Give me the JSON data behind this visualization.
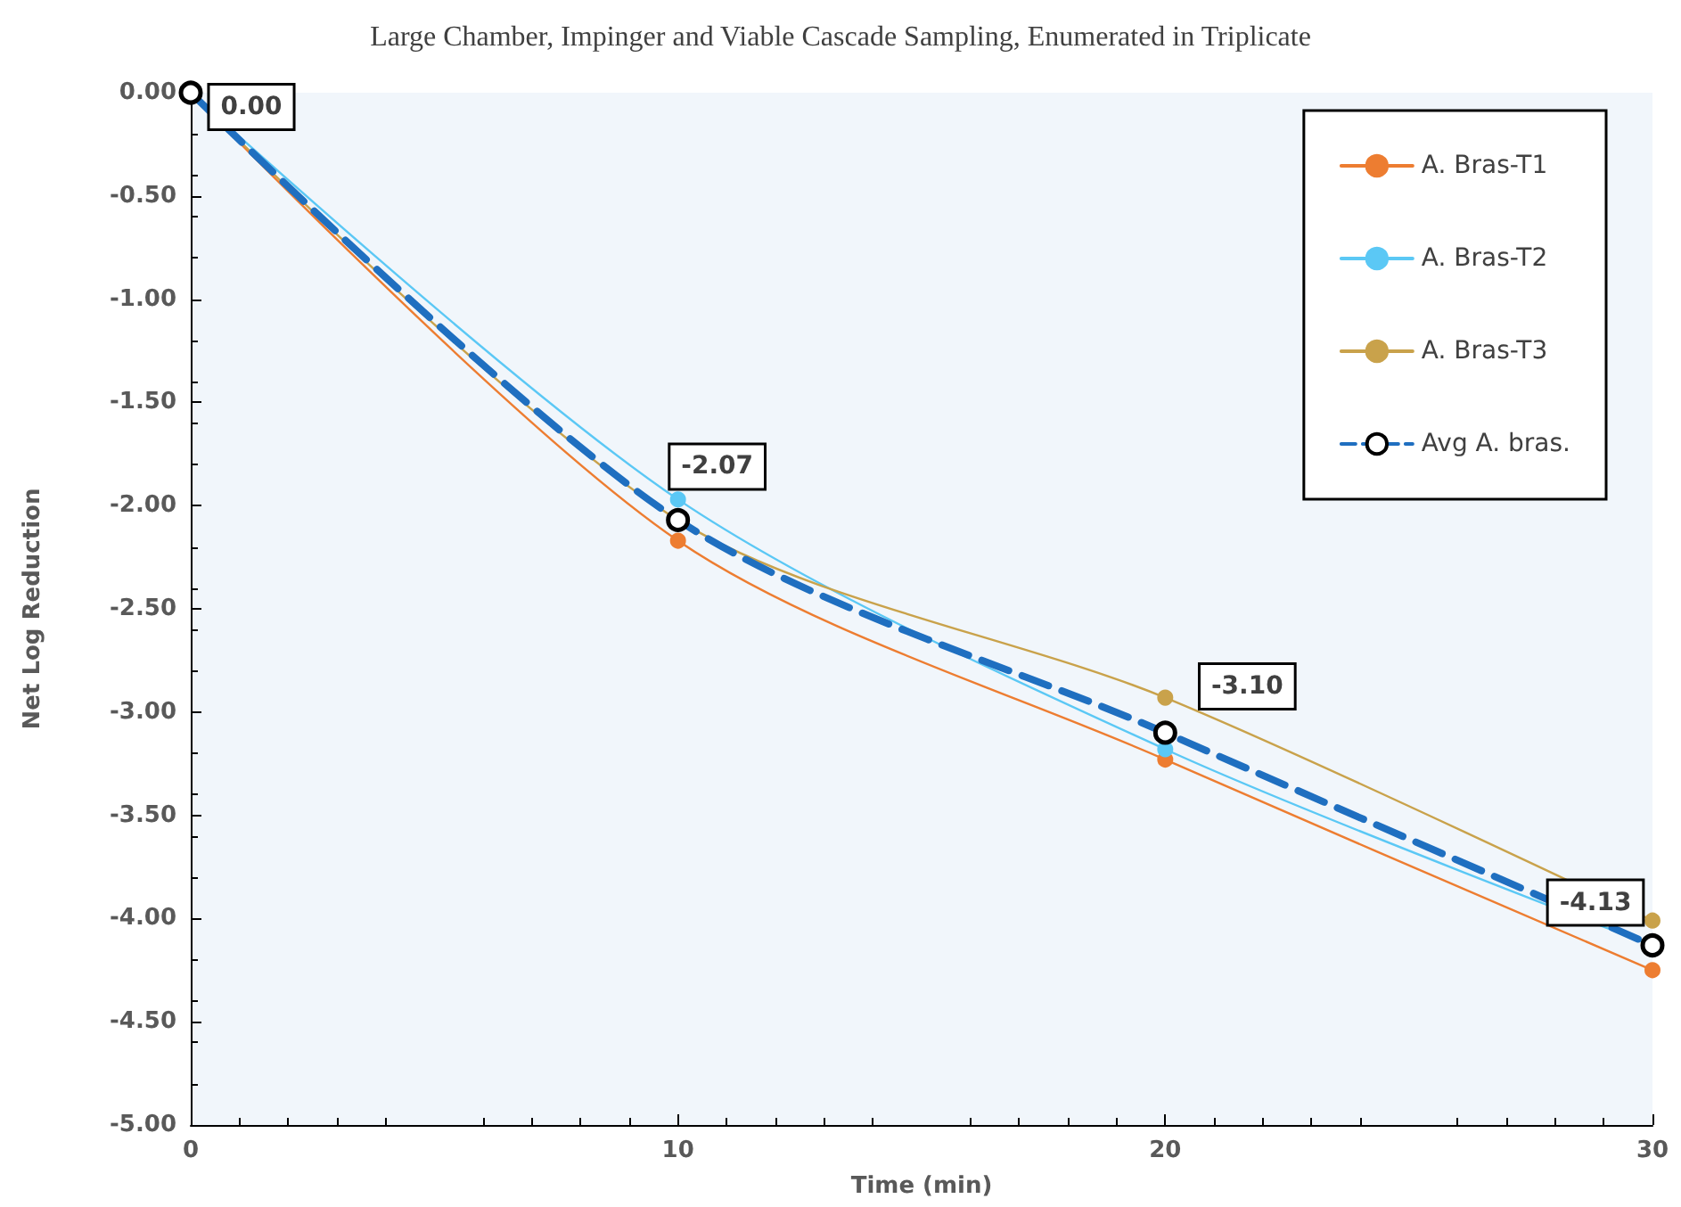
{
  "chart_data": {
    "type": "line",
    "title": "Large Chamber, Impinger and Viable Cascade Sampling, Enumerated in Triplicate",
    "xlabel": "Time (min)",
    "ylabel": "Net Log Reduction",
    "x": [
      0,
      10,
      20,
      30
    ],
    "series": [
      {
        "name": "A. Bras-T1",
        "color": "#ed7d31",
        "values": [
          0,
          -2.17,
          -3.23,
          -4.25
        ]
      },
      {
        "name": "A. Bras-T2",
        "color": "#5bc8f5",
        "values": [
          0,
          -1.97,
          -3.18,
          -4.13
        ]
      },
      {
        "name": "A. Bras-T3",
        "color": "#c9a24b",
        "values": [
          0,
          -2.07,
          -2.93,
          -4.01
        ]
      },
      {
        "name": "Avg A. bras.",
        "color": "#1f6fc0",
        "line_style": "dashed",
        "values": [
          0,
          -2.07,
          -3.1,
          -4.13
        ],
        "value_labels": [
          "0.00",
          "-2.07",
          "-3.10",
          "-4.13"
        ]
      }
    ],
    "xlim": [
      0,
      30
    ],
    "xticks": [
      0,
      10,
      20,
      30
    ],
    "ylim": [
      -5,
      0
    ],
    "yticks": [
      {
        "value": -5,
        "label": "-5.00"
      },
      {
        "value": -4.5,
        "label": "-4.50"
      },
      {
        "value": -4,
        "label": "-4.00"
      },
      {
        "value": -3.5,
        "label": "-3.50"
      },
      {
        "value": -3,
        "label": "-3.00"
      },
      {
        "value": -2.5,
        "label": "-2.50"
      },
      {
        "value": -2,
        "label": "-2.00"
      },
      {
        "value": -1.5,
        "label": "-1.50"
      },
      {
        "value": -1,
        "label": "-1.00"
      },
      {
        "value": -0.5,
        "label": "-0.50"
      },
      {
        "value": 0,
        "label": "0.00"
      }
    ],
    "grid": false,
    "legend": "top right",
    "marker": "circle",
    "line_style": "solid"
  }
}
